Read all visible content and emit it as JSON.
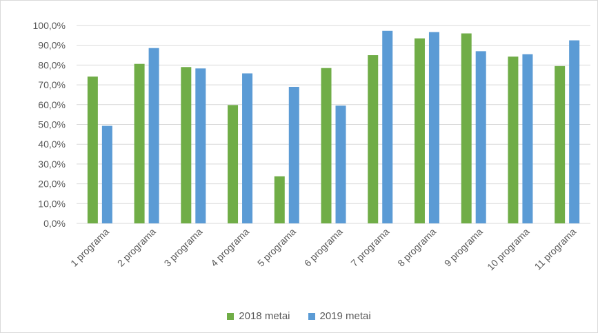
{
  "chart_data": {
    "type": "bar",
    "categories": [
      "1 programa",
      "2 programa",
      "3 programa",
      "4 programa",
      "5 programa",
      "6 programa",
      "7 programa",
      "8 programa",
      "9 programa",
      "10 programa",
      "11 programa"
    ],
    "series": [
      {
        "name": "2018 metai",
        "color": "#70ad47",
        "values": [
          74.2,
          80.6,
          79.0,
          59.8,
          23.8,
          78.5,
          85.0,
          93.5,
          96.0,
          84.3,
          79.5
        ]
      },
      {
        "name": "2019 metai",
        "color": "#5b9bd5",
        "values": [
          49.3,
          88.6,
          78.3,
          75.8,
          69.0,
          59.5,
          97.3,
          96.7,
          87.0,
          85.5,
          92.5
        ]
      }
    ],
    "yticks": [
      "0,0%",
      "10,0%",
      "20,0%",
      "30,0%",
      "40,0%",
      "50,0%",
      "60,0%",
      "70,0%",
      "80,0%",
      "90,0%",
      "100,0%"
    ],
    "ylim": [
      0,
      100
    ],
    "grid": true,
    "legend_position": "bottom",
    "gridline_color": "#d9d9d9",
    "text_color": "#595959"
  }
}
